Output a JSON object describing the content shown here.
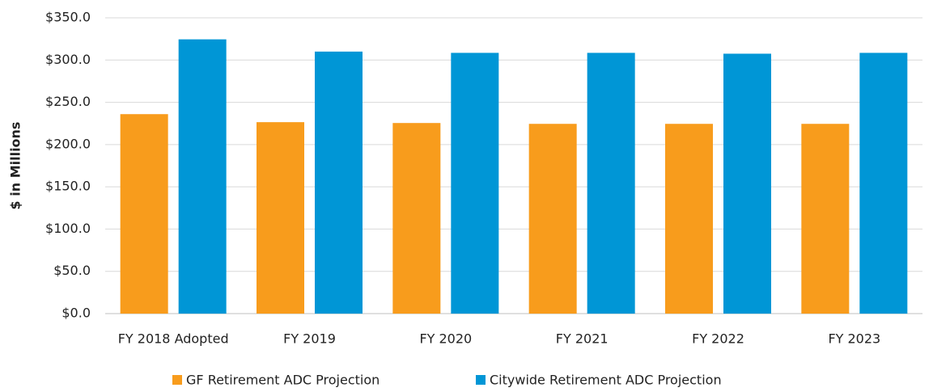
{
  "chart_data": {
    "type": "bar",
    "y_label": "$ in Millions",
    "categories": [
      "FY 2018 Adopted",
      "FY 2019",
      "FY 2020",
      "FY 2021",
      "FY 2022",
      "FY 2023"
    ],
    "series": [
      {
        "name": "GF Retirement ADC Projection",
        "color": "#f89c1c",
        "values": [
          236,
          226.5,
          225.5,
          224.5,
          224.5,
          224.5
        ]
      },
      {
        "name": "Citywide Retirement ADC Projection",
        "color": "#0096d6",
        "values": [
          324.5,
          310,
          308.5,
          308.5,
          307.5,
          308.5
        ]
      }
    ],
    "ylim": [
      0,
      350
    ],
    "yticks": [
      {
        "value": 0,
        "label": "$0.0"
      },
      {
        "value": 50,
        "label": "$50.0"
      },
      {
        "value": 100,
        "label": "$100.0"
      },
      {
        "value": 150,
        "label": "$150.0"
      },
      {
        "value": 200,
        "label": "$200.0"
      },
      {
        "value": 250,
        "label": "$250.0"
      },
      {
        "value": 300,
        "label": "$300.0"
      },
      {
        "value": 350,
        "label": "$350.0"
      }
    ],
    "grid": true,
    "legend": "bottom"
  }
}
